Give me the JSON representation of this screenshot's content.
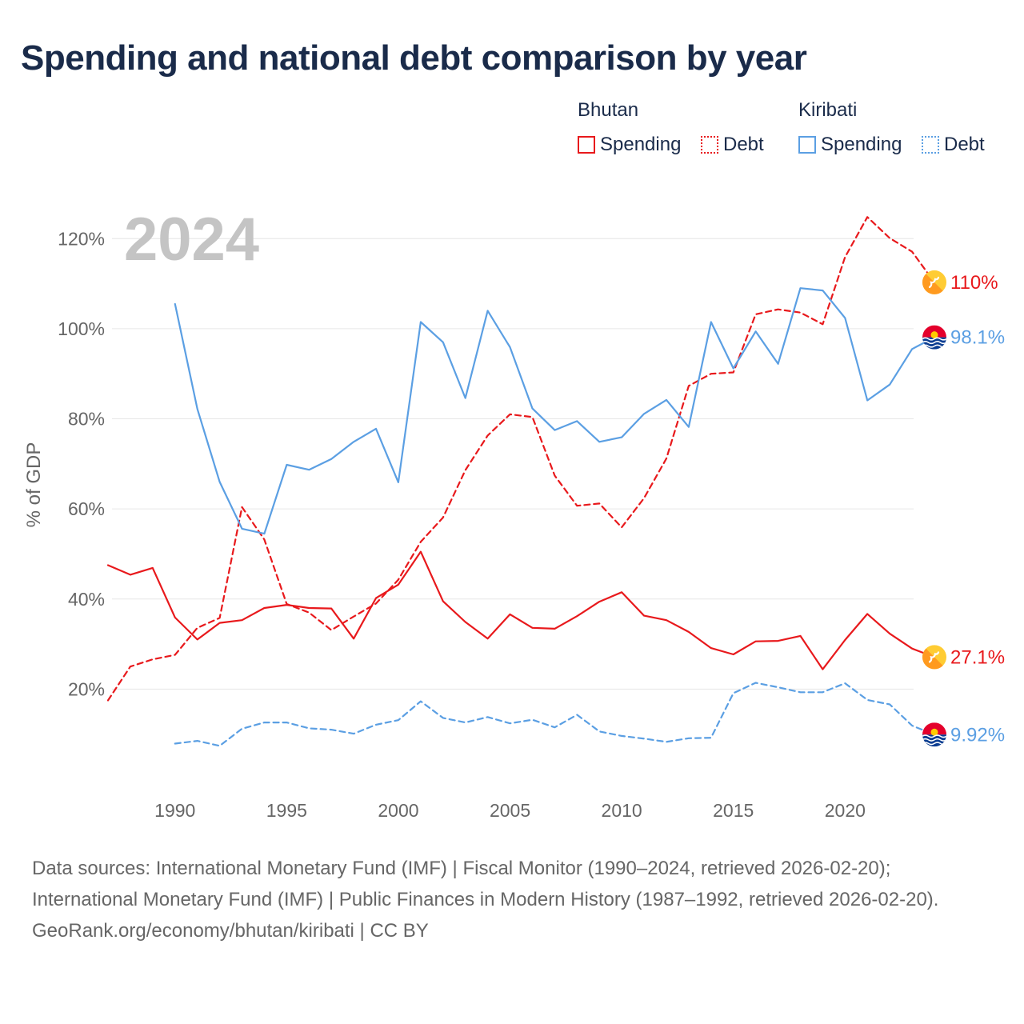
{
  "chart_data": {
    "type": "line",
    "title": "Spending and national debt comparison by year",
    "ylabel": "% of GDP",
    "xlabel": "",
    "year_label": "2024",
    "xlim": [
      1987,
      2024
    ],
    "ylim": [
      0,
      130
    ],
    "x_ticks": [
      1990,
      1995,
      2000,
      2005,
      2010,
      2015,
      2020
    ],
    "y_ticks": [
      20,
      40,
      60,
      80,
      100,
      120
    ],
    "y_tick_labels": [
      "20%",
      "40%",
      "60%",
      "80%",
      "100%",
      "120%"
    ],
    "grid": true,
    "legend": {
      "groups": [
        {
          "country": "Bhutan",
          "items": [
            "Spending",
            "Debt"
          ]
        },
        {
          "country": "Kiribati",
          "items": [
            "Spending",
            "Debt"
          ]
        }
      ]
    },
    "series": [
      {
        "name": "Bhutan Spending",
        "country": "Bhutan",
        "measure": "Spending",
        "color": "#e8191c",
        "dash": "solid",
        "end_label": "27.1%",
        "x": [
          1987,
          1988,
          1989,
          1990,
          1991,
          1992,
          1993,
          1994,
          1995,
          1996,
          1997,
          1998,
          1999,
          2000,
          2001,
          2002,
          2003,
          2004,
          2005,
          2006,
          2007,
          2008,
          2009,
          2010,
          2011,
          2012,
          2013,
          2014,
          2015,
          2016,
          2017,
          2018,
          2019,
          2020,
          2021,
          2022,
          2023,
          2024
        ],
        "values": [
          47.5,
          45.4,
          46.9,
          35.9,
          31.0,
          34.7,
          35.3,
          38.0,
          38.7,
          38.0,
          37.9,
          31.2,
          40.2,
          43.2,
          50.5,
          39.5,
          34.9,
          31.2,
          36.6,
          33.6,
          33.4,
          36.2,
          39.4,
          41.5,
          36.3,
          35.3,
          32.7,
          29.1,
          27.7,
          30.6,
          30.7,
          31.8,
          24.4,
          30.9,
          36.7,
          32.3,
          29.0,
          27.1
        ]
      },
      {
        "name": "Bhutan Debt",
        "country": "Bhutan",
        "measure": "Debt",
        "color": "#e8191c",
        "dash": "dashed",
        "end_label": "110%",
        "x": [
          1987,
          1988,
          1989,
          1990,
          1991,
          1992,
          1993,
          1994,
          1995,
          1996,
          1997,
          1998,
          1999,
          2000,
          2001,
          2002,
          2003,
          2004,
          2005,
          2006,
          2007,
          2008,
          2009,
          2010,
          2011,
          2012,
          2013,
          2014,
          2015,
          2016,
          2017,
          2018,
          2019,
          2020,
          2021,
          2022,
          2023,
          2024
        ],
        "values": [
          17.5,
          25.0,
          26.6,
          27.6,
          33.6,
          35.8,
          60.4,
          53.2,
          38.9,
          37.0,
          33.1,
          36.1,
          39.0,
          44.3,
          52.7,
          58.1,
          68.6,
          76.3,
          81.0,
          80.4,
          67.4,
          60.7,
          61.2,
          55.9,
          62.4,
          71.2,
          87.3,
          90.0,
          90.3,
          103.2,
          104.3,
          103.6,
          101.0,
          115.9,
          124.8,
          120.1,
          117.1,
          110.3
        ]
      },
      {
        "name": "Kiribati Spending",
        "country": "Kiribati",
        "measure": "Spending",
        "color": "#5b9fe3",
        "dash": "solid",
        "end_label": "98.1%",
        "x": [
          1990,
          1991,
          1992,
          1993,
          1994,
          1995,
          1996,
          1997,
          1998,
          1999,
          2000,
          2001,
          2002,
          2003,
          2004,
          2005,
          2006,
          2007,
          2008,
          2009,
          2010,
          2011,
          2012,
          2013,
          2014,
          2015,
          2016,
          2017,
          2018,
          2019,
          2020,
          2021,
          2022,
          2023,
          2024
        ],
        "values": [
          105.5,
          82.2,
          66.0,
          55.6,
          54.5,
          69.8,
          68.7,
          71.1,
          74.9,
          77.8,
          65.9,
          101.5,
          97.0,
          84.6,
          104.0,
          95.9,
          82.3,
          77.5,
          79.5,
          74.9,
          75.9,
          81.1,
          84.2,
          78.2,
          101.5,
          91.2,
          99.4,
          92.2,
          109.0,
          108.5,
          102.4,
          84.1,
          87.6,
          95.5,
          98.1
        ]
      },
      {
        "name": "Kiribati Debt",
        "country": "Kiribati",
        "measure": "Debt",
        "color": "#5b9fe3",
        "dash": "dashed",
        "end_label": "9.92%",
        "x": [
          1990,
          1991,
          1992,
          1993,
          1994,
          1995,
          1996,
          1997,
          1998,
          1999,
          2000,
          2001,
          2002,
          2003,
          2004,
          2005,
          2006,
          2007,
          2008,
          2009,
          2010,
          2011,
          2012,
          2013,
          2014,
          2015,
          2016,
          2017,
          2018,
          2019,
          2020,
          2021,
          2022,
          2023,
          2024
        ],
        "values": [
          7.9,
          8.5,
          7.4,
          11.2,
          12.6,
          12.6,
          11.3,
          11.0,
          10.1,
          12.1,
          13.1,
          17.3,
          13.6,
          12.6,
          13.8,
          12.4,
          13.2,
          11.5,
          14.3,
          10.6,
          9.6,
          9.0,
          8.3,
          9.1,
          9.2,
          19.1,
          21.4,
          20.4,
          19.3,
          19.3,
          21.3,
          17.6,
          16.6,
          11.9,
          9.9
        ]
      }
    ],
    "flags": {
      "Bhutan": "Bhutan flag",
      "Kiribati": "Kiribati flag"
    }
  },
  "legend_labels": {
    "bhutan": "Bhutan",
    "kiribati": "Kiribati",
    "spending": "Spending",
    "debt": "Debt"
  },
  "footer": {
    "sources": "Data sources: International Monetary Fund (IMF) | Fiscal Monitor (1990–2024, retrieved 2026-02-20); International Monetary Fund (IMF) | Public Finances in Modern History (1987–1992, retrieved 2026-02-20).",
    "credit": "GeoRank.org/economy/bhutan/kiribati | CC BY"
  },
  "colors": {
    "bhutan": "#e8191c",
    "kiribati": "#5b9fe3",
    "title": "#1a2b4a",
    "axis_text": "#666666",
    "grid": "#e6e6e6",
    "year_watermark": "#c4c4c4"
  }
}
